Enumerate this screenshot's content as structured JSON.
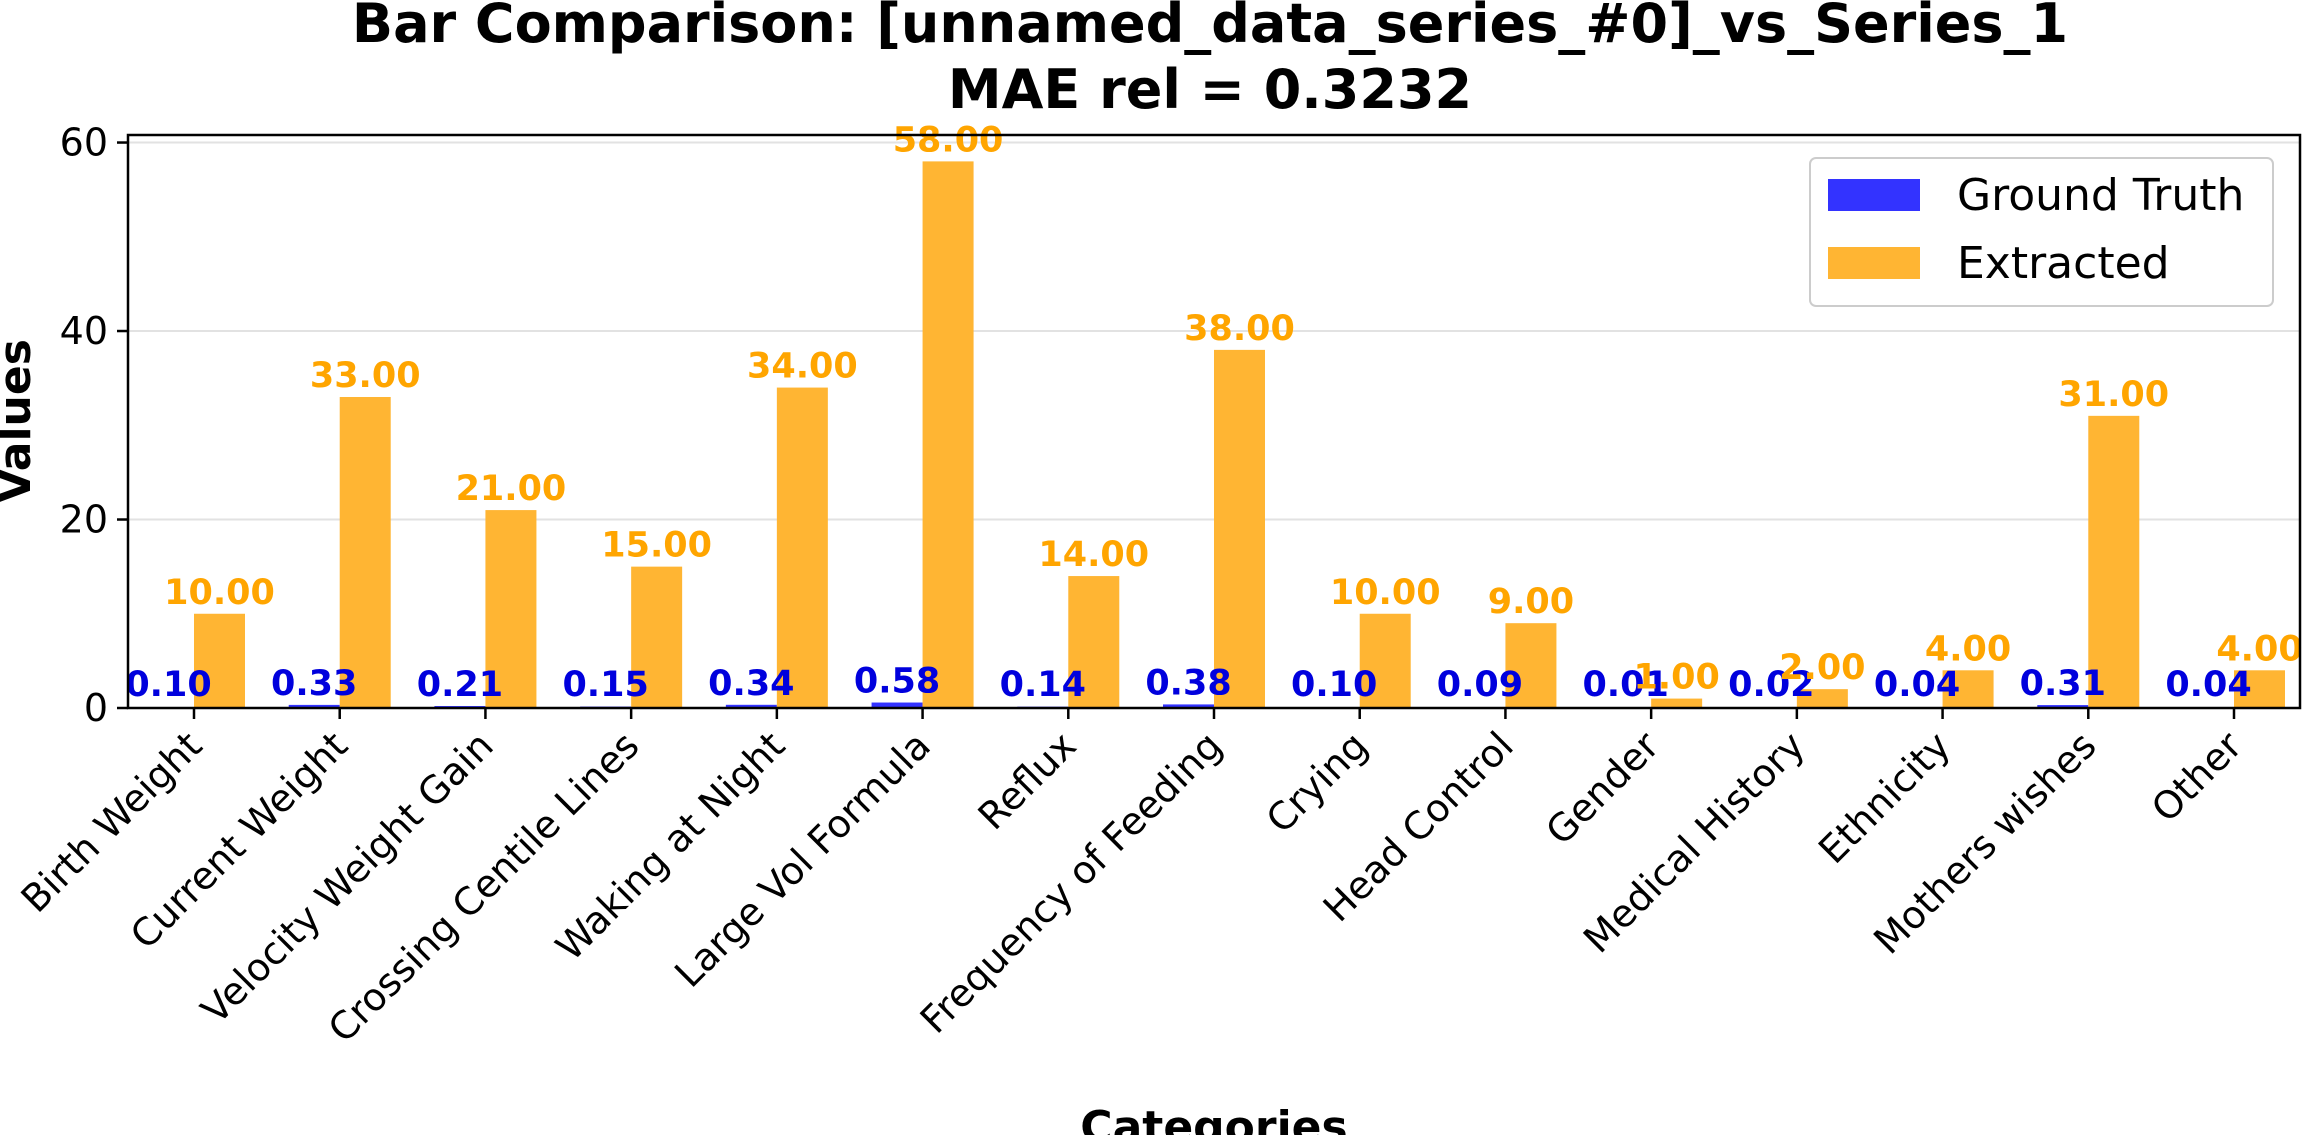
{
  "chart_data": {
    "type": "bar",
    "title": "Bar Comparison: [unnamed_data_series_#0]_vs_Series_1",
    "subtitle": "MAE rel = 0.3232",
    "xlabel": "Categories",
    "ylabel": "Values",
    "ylim": [
      0,
      60.8
    ],
    "yticks": [
      0,
      20,
      40,
      60
    ],
    "grid": true,
    "legend_position": "top-right",
    "categories": [
      "Birth Weight",
      "Current Weight",
      "Velocity Weight Gain",
      "Crossing Centile Lines",
      "Waking at Night",
      "Large Vol Formula",
      "Reflux",
      "Frequency of Feeding",
      "Crying",
      "Head Control",
      "Gender",
      "Medical History",
      "Ethnicity",
      "Mothers wishes",
      "Other"
    ],
    "series": [
      {
        "name": "Ground Truth",
        "color": "#3333ff",
        "values": [
          0.1,
          0.33,
          0.21,
          0.15,
          0.34,
          0.58,
          0.14,
          0.38,
          0.1,
          0.09,
          0.01,
          0.02,
          0.04,
          0.31,
          0.04
        ],
        "labels": [
          "0.10",
          "0.33",
          "0.21",
          "0.15",
          "0.34",
          "0.58",
          "0.14",
          "0.38",
          "0.10",
          "0.09",
          "0.01",
          "0.02",
          "0.04",
          "0.31",
          "0.04"
        ]
      },
      {
        "name": "Extracted",
        "color": "#ffb533",
        "values": [
          10,
          33,
          21,
          15,
          34,
          58,
          14,
          38,
          10,
          9,
          1,
          2,
          4,
          31,
          4
        ],
        "labels": [
          "10.00",
          "33.00",
          "21.00",
          "15.00",
          "34.00",
          "58.00",
          "14.00",
          "38.00",
          "10.00",
          "9.00",
          "1.00",
          "2.00",
          "4.00",
          "31.00",
          "4.00"
        ]
      }
    ],
    "label_colors": [
      "#0000dd",
      "#ffa500"
    ]
  }
}
